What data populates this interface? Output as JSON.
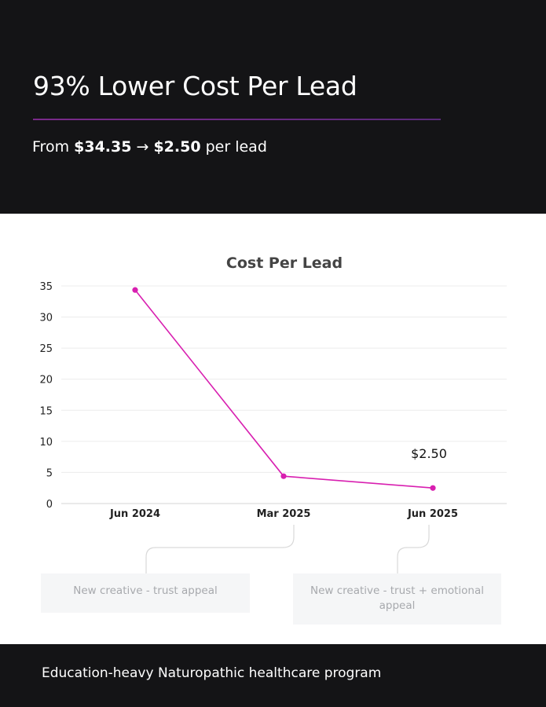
{
  "header": {
    "headline": "93% Lower Cost Per Lead",
    "sub_prefix": "From ",
    "sub_from": "$34.35",
    "sub_arrow": " → ",
    "sub_to": "$2.50",
    "sub_suffix": " per lead"
  },
  "chart_data": {
    "type": "line",
    "title": "Cost Per Lead",
    "xlabel": "",
    "ylabel": "",
    "categories": [
      "Jun 2024",
      "Mar 2025",
      "Jun 2025"
    ],
    "series": [
      {
        "values": [
          34.35,
          4.4,
          2.5
        ],
        "color": "#d81fb0"
      }
    ],
    "ylim": [
      0,
      35
    ],
    "yticks": [
      0,
      5,
      10,
      15,
      20,
      25,
      30,
      35
    ],
    "grid": true,
    "data_labels": [
      {
        "index": 2,
        "text": "$2.50"
      }
    ]
  },
  "annotations": [
    {
      "text": "New creative - trust appeal",
      "category": "Mar 2025"
    },
    {
      "text": "New creative - trust + emotional appeal",
      "category": "Jun 2025"
    }
  ],
  "footer": {
    "text": "Education-heavy Naturopathic healthcare program"
  }
}
